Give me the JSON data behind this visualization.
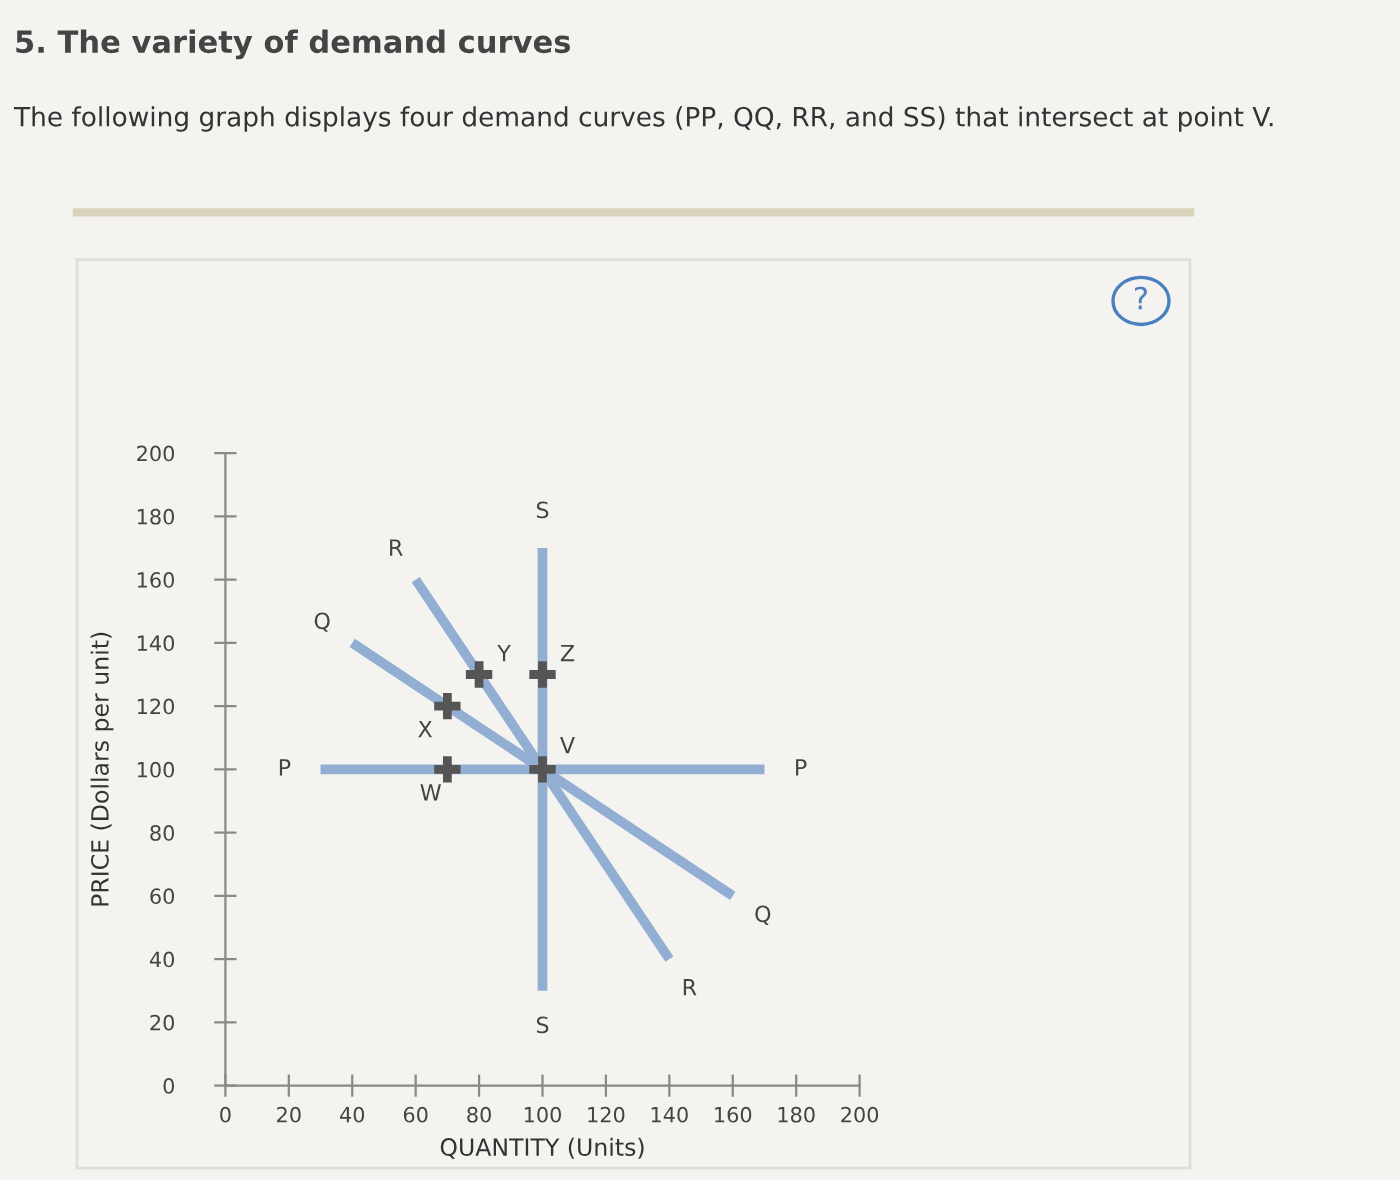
{
  "chart_data": {
    "type": "line",
    "title": "5. The variety of demand curves",
    "subtitle": "The following graph displays four demand curves (PP, QQ, RR, and SS) that intersect at point V.",
    "xlabel": "QUANTITY (Units)",
    "ylabel": "PRICE (Dollars per unit)",
    "series": [
      {
        "color": "#92aed3",
        "x": [
          30,
          170
        ],
        "values": [
          100,
          100
        ]
      },
      {
        "color": "#92aed3",
        "x": [
          40,
          160
        ],
        "values": [
          140,
          60
        ]
      },
      {
        "color": "#92aed3",
        "x": [
          60,
          140
        ],
        "values": [
          160,
          40
        ]
      },
      {
        "color": "#92aed3",
        "x": [
          100,
          100
        ],
        "values": [
          170,
          30
        ]
      },
      {
        "type": "scatter",
        "color": "#555555",
        "marker": "cross",
        "x": [
          70,
          70,
          80,
          100,
          100
        ],
        "values": [
          100,
          120,
          130,
          130,
          100
        ],
        "value_labels": [
          "W",
          "X",
          "Y",
          "Z",
          "V"
        ]
      }
    ],
    "annotations": [
      "?",
      {
        "text": "P",
        "x": 30,
        "y": 100
      },
      {
        "text": "P",
        "x": 170,
        "y": 100
      },
      {
        "text": "Q",
        "x": 40,
        "y": 140
      },
      {
        "text": "Q",
        "x": 160,
        "y": 60
      },
      {
        "text": "R",
        "x": 60,
        "y": 160
      },
      {
        "text": "R",
        "x": 140,
        "y": 40
      },
      {
        "text": "S",
        "x": 100,
        "y": 170
      },
      {
        "text": "S",
        "x": 100,
        "y": 30
      }
    ],
    "xlim": [
      0,
      200
    ],
    "ylim": [
      0,
      200
    ],
    "xticks": [
      0,
      20,
      40,
      60,
      80,
      100,
      120,
      140,
      160,
      180,
      200
    ],
    "yticks": [
      0,
      20,
      40,
      60,
      80,
      100,
      120,
      140,
      160,
      180,
      200
    ],
    "grid": false,
    "legend": false
  }
}
